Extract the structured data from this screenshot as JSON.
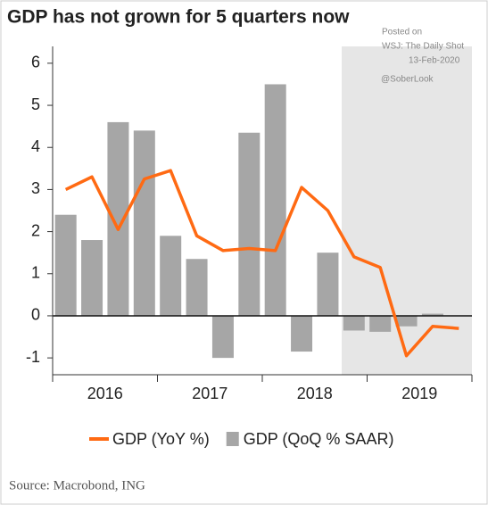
{
  "chart_data": {
    "type": "bar-line",
    "title": "GDP has not grown for 5 quarters now",
    "watermark": [
      "Posted on",
      "WSJ: The Daily Shot",
      "13-Feb-2020",
      "@SoberLook"
    ],
    "source": "Source: Macrobond, ING",
    "categories": [
      null,
      null,
      null,
      null,
      null,
      null,
      null,
      null,
      null,
      null,
      null,
      null,
      null,
      null,
      null,
      null
    ],
    "year_labels": [
      "2016",
      "2017",
      "2018",
      "2019"
    ],
    "series": [
      {
        "name": "GDP (YoY %)",
        "kind": "line",
        "color": "#ff6a13",
        "values": [
          3.0,
          3.3,
          2.05,
          3.25,
          3.45,
          1.9,
          1.55,
          1.6,
          1.55,
          3.05,
          2.5,
          1.4,
          1.15,
          -0.95,
          -0.25,
          -0.3
        ]
      },
      {
        "name": "GDP (QoQ % SAAR)",
        "kind": "bar",
        "color": "#a6a6a6",
        "values": [
          2.4,
          1.8,
          4.6,
          4.4,
          1.9,
          1.35,
          -1.0,
          4.35,
          5.5,
          -0.85,
          1.5,
          -0.35,
          -0.38,
          -0.25,
          0.05,
          null
        ]
      }
    ],
    "ylim": [
      -1.4,
      6.4
    ],
    "yticks": [
      -1,
      0,
      1,
      2,
      3,
      4,
      5,
      6
    ]
  }
}
